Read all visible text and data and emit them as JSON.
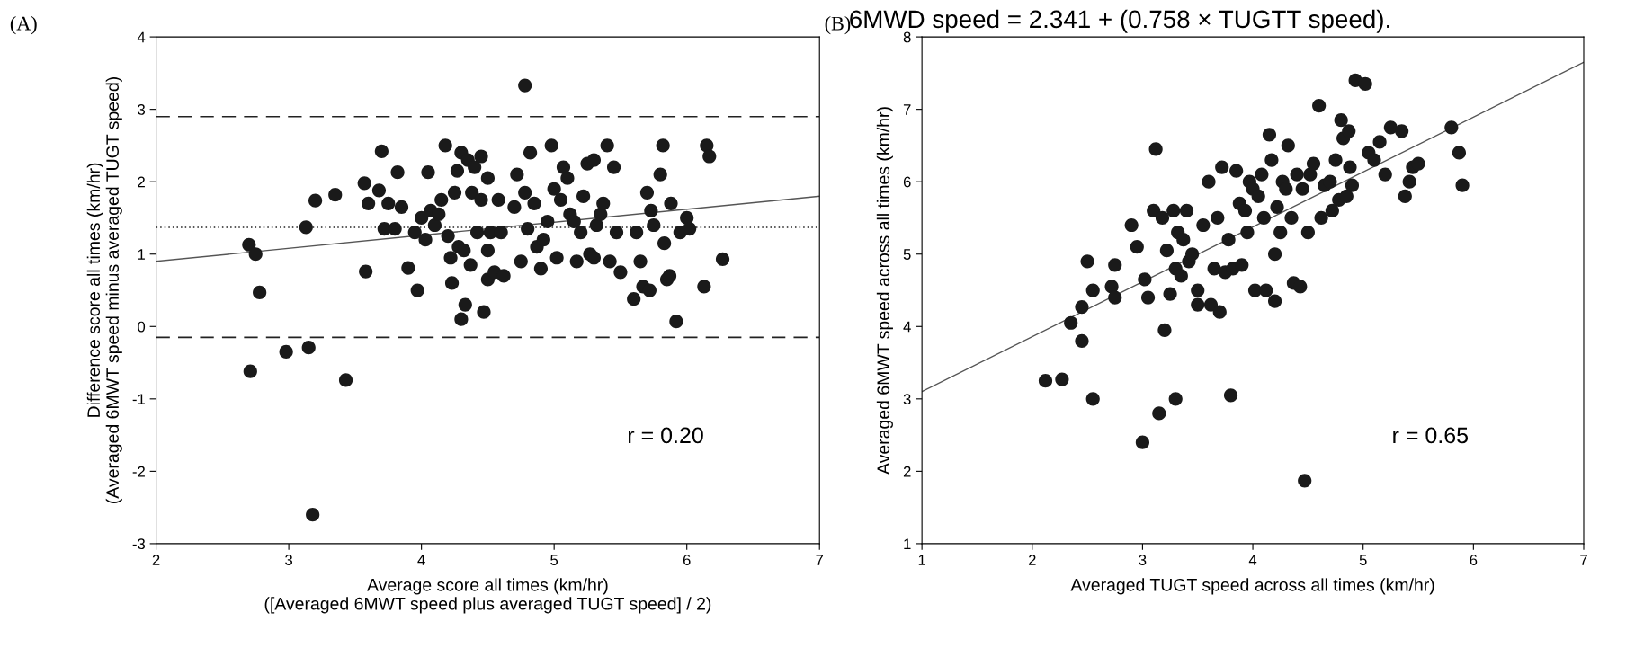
{
  "chart_data": [
    {
      "type": "scatter",
      "title": "(A)",
      "xlabel": "Average score all times (km/hr)\n([Averaged 6MWT speed plus averaged TUGT speed] / 2)",
      "ylabel": "Difference score all times (km/hr)\n(Averaged 6MWT speed minus averaged TUGT speed)",
      "xlim": [
        2,
        7
      ],
      "ylim": [
        -3,
        4
      ],
      "xticks": [
        2,
        3,
        4,
        5,
        6,
        7
      ],
      "yticks": [
        -3,
        -2,
        -1,
        0,
        1,
        2,
        3,
        4
      ],
      "grid": false,
      "ref_lines": [
        {
          "axis": "y",
          "value": 2.9,
          "line_style": "dashed"
        },
        {
          "axis": "y",
          "value": -0.15,
          "line_style": "dashed"
        },
        {
          "axis": "y",
          "value": 1.37,
          "line_style": "dotted"
        }
      ],
      "annotations": [
        "r = 0.20"
      ],
      "series": [
        {
          "marker": "circle",
          "color": "#1a1a1a",
          "x": [
            2.7,
            2.75,
            2.78,
            2.71,
            2.98,
            3.13,
            3.15,
            3.2,
            3.18,
            3.35,
            3.43,
            3.57,
            3.58,
            3.6,
            3.68,
            3.7,
            3.72,
            3.75,
            3.8,
            3.82,
            3.85,
            3.9,
            3.95,
            3.97,
            4.0,
            4.03,
            4.05,
            4.07,
            4.1,
            4.13,
            4.15,
            4.18,
            4.2,
            4.22,
            4.23,
            4.25,
            4.27,
            4.28,
            4.3,
            4.32,
            4.33,
            4.3,
            4.35,
            4.37,
            4.38,
            4.4,
            4.42,
            4.45,
            4.45,
            4.47,
            4.5,
            4.5,
            4.5,
            4.52,
            4.55,
            4.58,
            4.6,
            4.62,
            4.7,
            4.72,
            4.75,
            4.78,
            4.78,
            4.8,
            4.82,
            4.85,
            4.87,
            4.9,
            4.92,
            4.95,
            4.98,
            5.0,
            5.02,
            5.05,
            5.07,
            5.1,
            5.12,
            5.15,
            5.17,
            5.2,
            5.22,
            5.25,
            5.27,
            5.3,
            5.3,
            5.32,
            5.35,
            5.37,
            5.4,
            5.42,
            5.45,
            5.47,
            5.5,
            5.6,
            5.62,
            5.65,
            5.67,
            5.7,
            5.72,
            5.73,
            5.75,
            5.8,
            5.82,
            5.83,
            5.85,
            5.87,
            5.88,
            5.92,
            5.95,
            6.0,
            6.02,
            6.13,
            6.15,
            6.17,
            6.27
          ],
          "values": [
            1.13,
            1.0,
            0.47,
            -0.62,
            -0.35,
            1.37,
            -0.29,
            1.74,
            -2.6,
            1.82,
            -0.74,
            1.98,
            0.76,
            1.7,
            1.88,
            2.42,
            1.35,
            1.7,
            1.35,
            2.13,
            1.65,
            0.81,
            1.3,
            0.5,
            1.5,
            1.2,
            2.13,
            1.6,
            1.4,
            1.55,
            1.75,
            2.5,
            1.25,
            0.95,
            0.6,
            1.85,
            2.15,
            1.1,
            2.4,
            1.05,
            0.3,
            0.1,
            2.3,
            0.85,
            1.85,
            2.2,
            1.3,
            2.35,
            1.75,
            0.2,
            2.05,
            1.05,
            0.65,
            1.3,
            0.75,
            1.75,
            1.3,
            0.7,
            1.65,
            2.1,
            0.9,
            3.33,
            1.85,
            1.35,
            2.4,
            1.7,
            1.1,
            0.8,
            1.2,
            1.45,
            2.5,
            1.9,
            0.95,
            1.75,
            2.2,
            2.05,
            1.55,
            1.45,
            0.9,
            1.3,
            1.8,
            2.25,
            1.0,
            2.3,
            0.95,
            1.4,
            1.55,
            1.7,
            2.5,
            0.9,
            2.2,
            1.3,
            0.75,
            0.38,
            1.3,
            0.9,
            0.55,
            1.85,
            0.5,
            1.6,
            1.4,
            2.1,
            2.5,
            1.15,
            0.65,
            0.7,
            1.7,
            0.07,
            1.3,
            1.5,
            1.35,
            0.55,
            2.5,
            2.35,
            0.93
          ]
        },
        {
          "type": "line",
          "marker": "none",
          "color": "#555555",
          "x": [
            2,
            7
          ],
          "values": [
            0.9,
            1.8
          ]
        }
      ]
    },
    {
      "type": "scatter",
      "title": "(B)",
      "subtitle": "6MWD speed = 2.341 + (0.758 × TUGTT speed).",
      "xlabel": "Averaged TUGT speed across all times (km/hr)",
      "ylabel": "Averaged 6MWT speed across all times (km/hr)",
      "xlim": [
        1,
        7
      ],
      "ylim": [
        1,
        8
      ],
      "xticks": [
        1,
        2,
        3,
        4,
        5,
        6,
        7
      ],
      "yticks": [
        1,
        2,
        3,
        4,
        5,
        6,
        7,
        8
      ],
      "grid": false,
      "annotations": [
        "r = 0.65"
      ],
      "series": [
        {
          "marker": "circle",
          "color": "#1a1a1a",
          "x": [
            2.12,
            2.27,
            2.35,
            2.45,
            2.45,
            2.5,
            2.55,
            2.55,
            2.72,
            2.75,
            2.75,
            2.9,
            2.95,
            3.0,
            3.02,
            3.05,
            3.1,
            3.12,
            3.15,
            3.18,
            3.2,
            3.22,
            3.25,
            3.28,
            3.3,
            3.3,
            3.32,
            3.35,
            3.37,
            3.4,
            3.42,
            3.45,
            3.5,
            3.5,
            3.55,
            3.6,
            3.62,
            3.65,
            3.68,
            3.7,
            3.72,
            3.75,
            3.78,
            3.8,
            3.82,
            3.85,
            3.88,
            3.9,
            3.93,
            3.95,
            3.97,
            4.0,
            4.02,
            4.05,
            4.08,
            4.1,
            4.12,
            4.15,
            4.17,
            4.2,
            4.2,
            4.22,
            4.25,
            4.27,
            4.3,
            4.32,
            4.35,
            4.37,
            4.4,
            4.43,
            4.45,
            4.47,
            4.5,
            4.52,
            4.55,
            4.6,
            4.62,
            4.65,
            4.7,
            4.72,
            4.75,
            4.78,
            4.8,
            4.82,
            4.85,
            4.87,
            4.88,
            4.9,
            4.93,
            5.02,
            5.05,
            5.1,
            5.15,
            5.2,
            5.25,
            5.35,
            5.38,
            5.42,
            5.45,
            5.5,
            5.8,
            5.87,
            5.9
          ],
          "values": [
            3.25,
            3.27,
            4.05,
            3.8,
            4.27,
            4.9,
            3.0,
            4.5,
            4.55,
            4.4,
            4.85,
            5.4,
            5.1,
            2.4,
            4.65,
            4.4,
            5.6,
            6.45,
            2.8,
            5.5,
            3.95,
            5.05,
            4.45,
            5.6,
            3.0,
            4.8,
            5.3,
            4.7,
            5.2,
            5.6,
            4.9,
            5.0,
            4.5,
            4.3,
            5.4,
            6.0,
            4.3,
            4.8,
            5.5,
            4.2,
            6.2,
            4.75,
            5.2,
            3.05,
            4.8,
            6.15,
            5.7,
            4.85,
            5.6,
            5.3,
            6.0,
            5.9,
            4.5,
            5.8,
            6.1,
            5.5,
            4.5,
            6.65,
            6.3,
            4.35,
            5.0,
            5.65,
            5.3,
            6.0,
            5.9,
            6.5,
            5.5,
            4.6,
            6.1,
            4.55,
            5.9,
            1.87,
            5.3,
            6.1,
            6.25,
            7.05,
            5.5,
            5.95,
            6.0,
            5.6,
            6.3,
            5.75,
            6.85,
            6.6,
            5.8,
            6.7,
            6.2,
            5.95,
            7.4,
            7.35,
            6.4,
            6.3,
            6.55,
            6.1,
            6.75,
            6.7,
            5.8,
            6.0,
            6.2,
            6.25,
            6.75,
            6.4,
            5.95
          ]
        },
        {
          "type": "line",
          "marker": "none",
          "color": "#555555",
          "x": [
            1,
            7
          ],
          "values": [
            3.1,
            7.65
          ]
        }
      ]
    }
  ]
}
